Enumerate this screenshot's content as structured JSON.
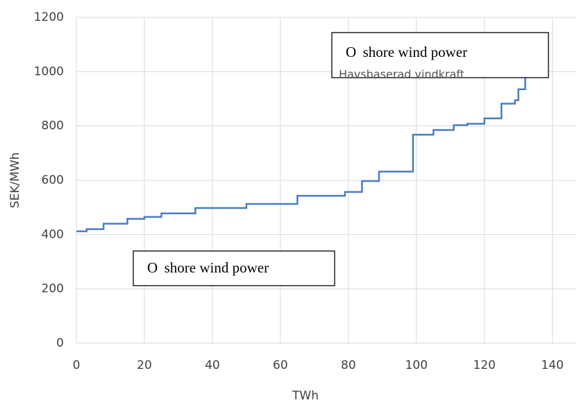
{
  "chart_data": {
    "type": "line",
    "step": true,
    "x_label": "TWh",
    "y_label": "SEK/MWh",
    "x": [
      0,
      3,
      3,
      8,
      8,
      15,
      15,
      20,
      20,
      25,
      25,
      35,
      35,
      50,
      50,
      65,
      65,
      79,
      79,
      84,
      84,
      89,
      89,
      99,
      99,
      105,
      105,
      111,
      111,
      115,
      115,
      120,
      120,
      125,
      125,
      129,
      129,
      130,
      130,
      132,
      132
    ],
    "series": [
      {
        "color": "#4a7cc4",
        "values": [
          412,
          412,
          420,
          420,
          440,
          440,
          458,
          458,
          465,
          465,
          478,
          478,
          498,
          498,
          513,
          513,
          543,
          543,
          557,
          557,
          597,
          597,
          632,
          632,
          768,
          768,
          785,
          785,
          803,
          803,
          808,
          808,
          828,
          828,
          882,
          882,
          895,
          895,
          935,
          935,
          990
        ]
      }
    ],
    "xlim": [
      0,
      147
    ],
    "xticks": [
      0,
      20,
      40,
      60,
      80,
      100,
      120,
      140
    ],
    "ylim": [
      0,
      1200
    ],
    "yticks": [
      0,
      200,
      400,
      600,
      800,
      1000,
      1200
    ],
    "grid": true,
    "annotations": [
      "O  shore wind power",
      "Havsbaserad vindkraft",
      "O  shore wind power"
    ]
  }
}
